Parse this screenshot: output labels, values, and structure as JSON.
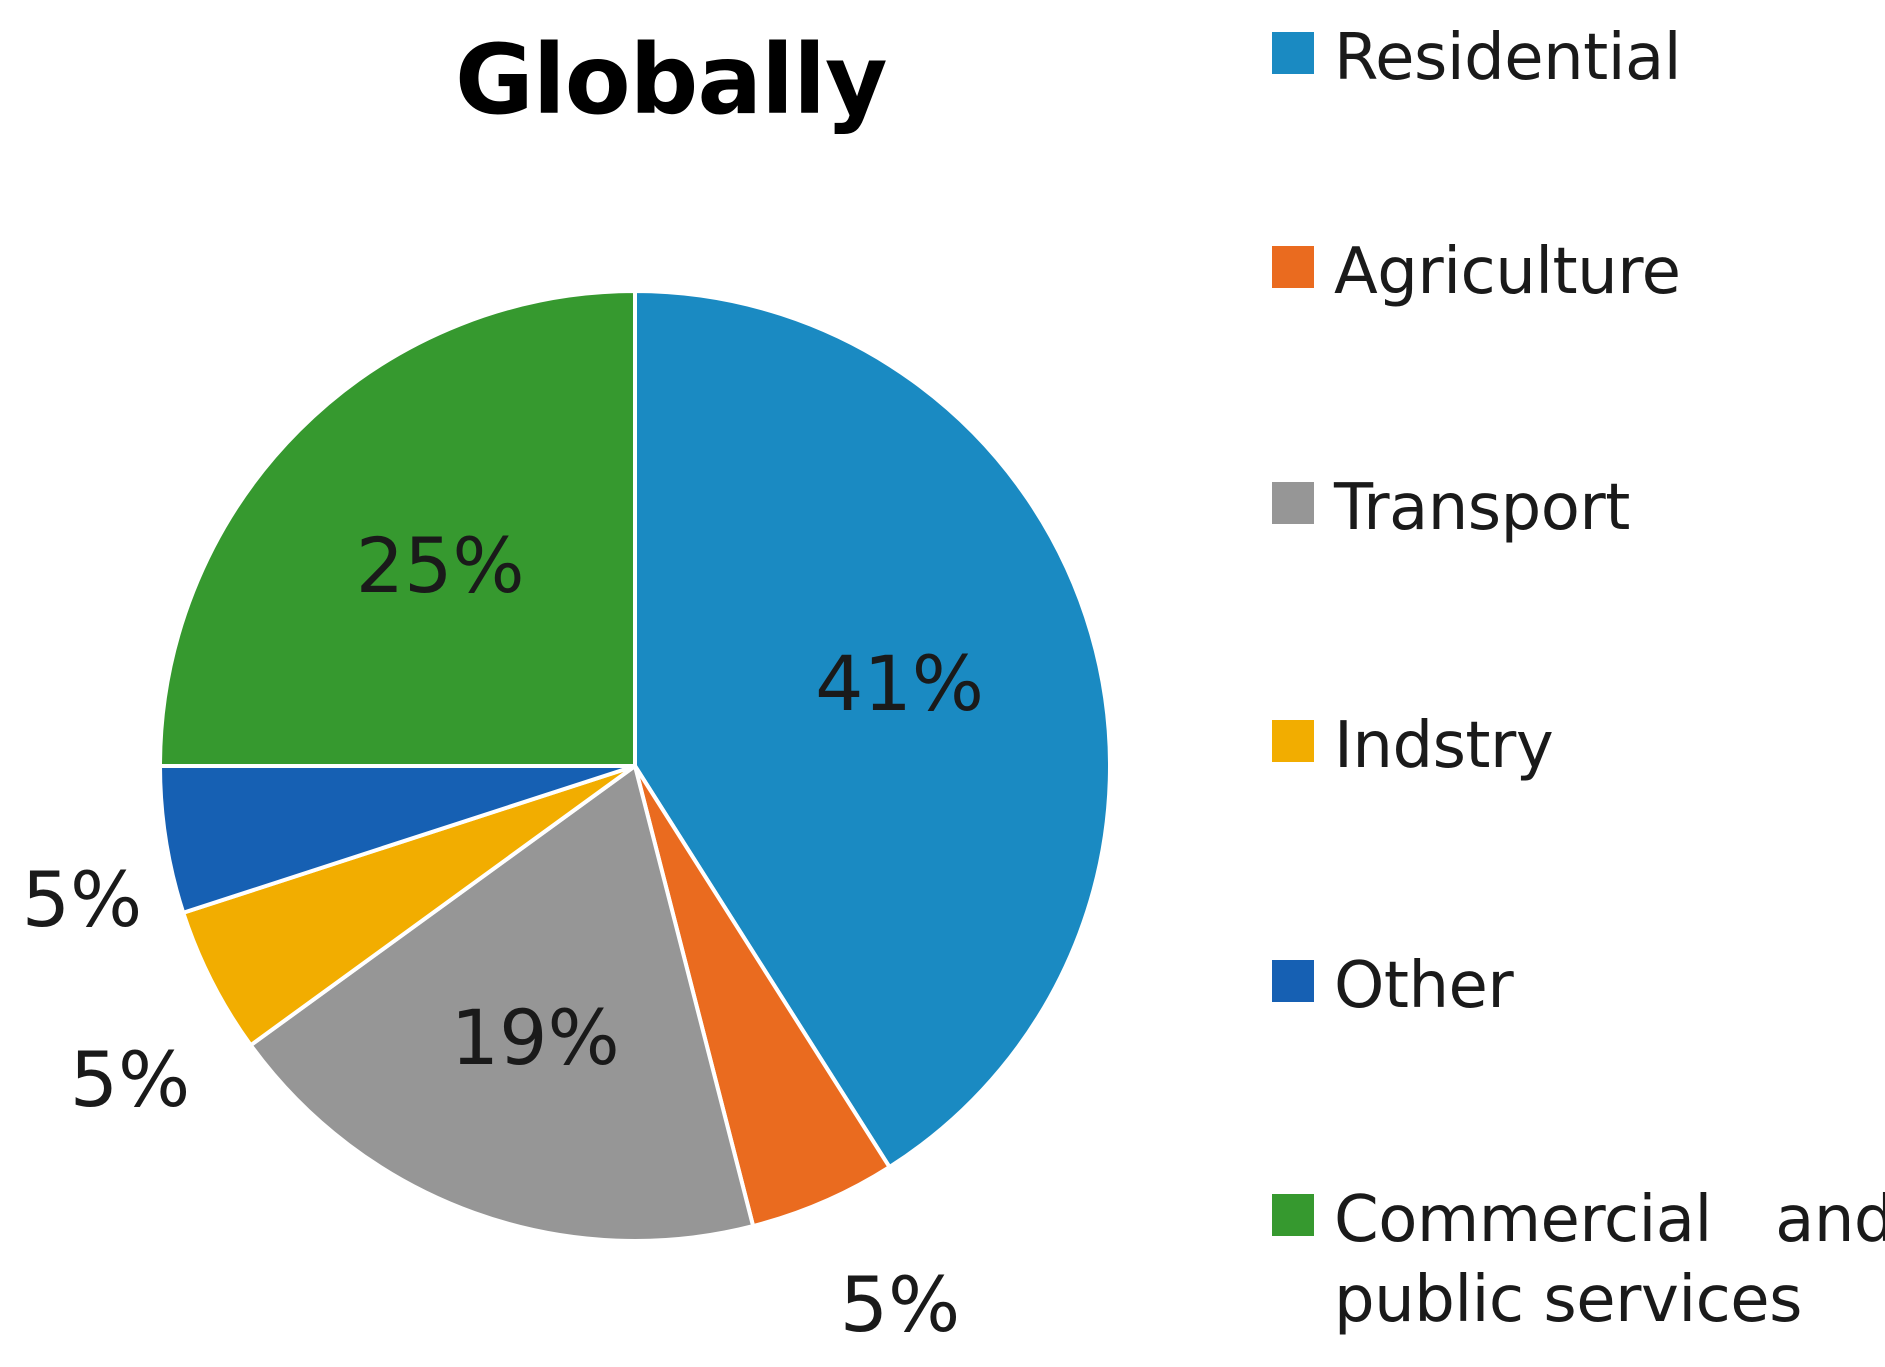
{
  "chart_data": {
    "type": "pie",
    "title": "Globally",
    "slices": [
      {
        "label": "Residential",
        "value": 41,
        "display": "41%",
        "color": "#1a8ac2"
      },
      {
        "label": "Agriculture",
        "value": 5,
        "display": "5%",
        "color": "#ea6b1f"
      },
      {
        "label": "Transport",
        "value": 19,
        "display": "19%",
        "color": "#969696"
      },
      {
        "label": "Indstry",
        "value": 5,
        "display": "5%",
        "color": "#f2ad00"
      },
      {
        "label": "Other",
        "value": 5,
        "display": "5%",
        "color": "#1660b3"
      },
      {
        "label": "Commercial and public services",
        "value": 25,
        "display": "25%",
        "color": "#36992f"
      }
    ],
    "start_angle": "12 o'clock",
    "direction": "clockwise",
    "legend_placement": "right"
  }
}
